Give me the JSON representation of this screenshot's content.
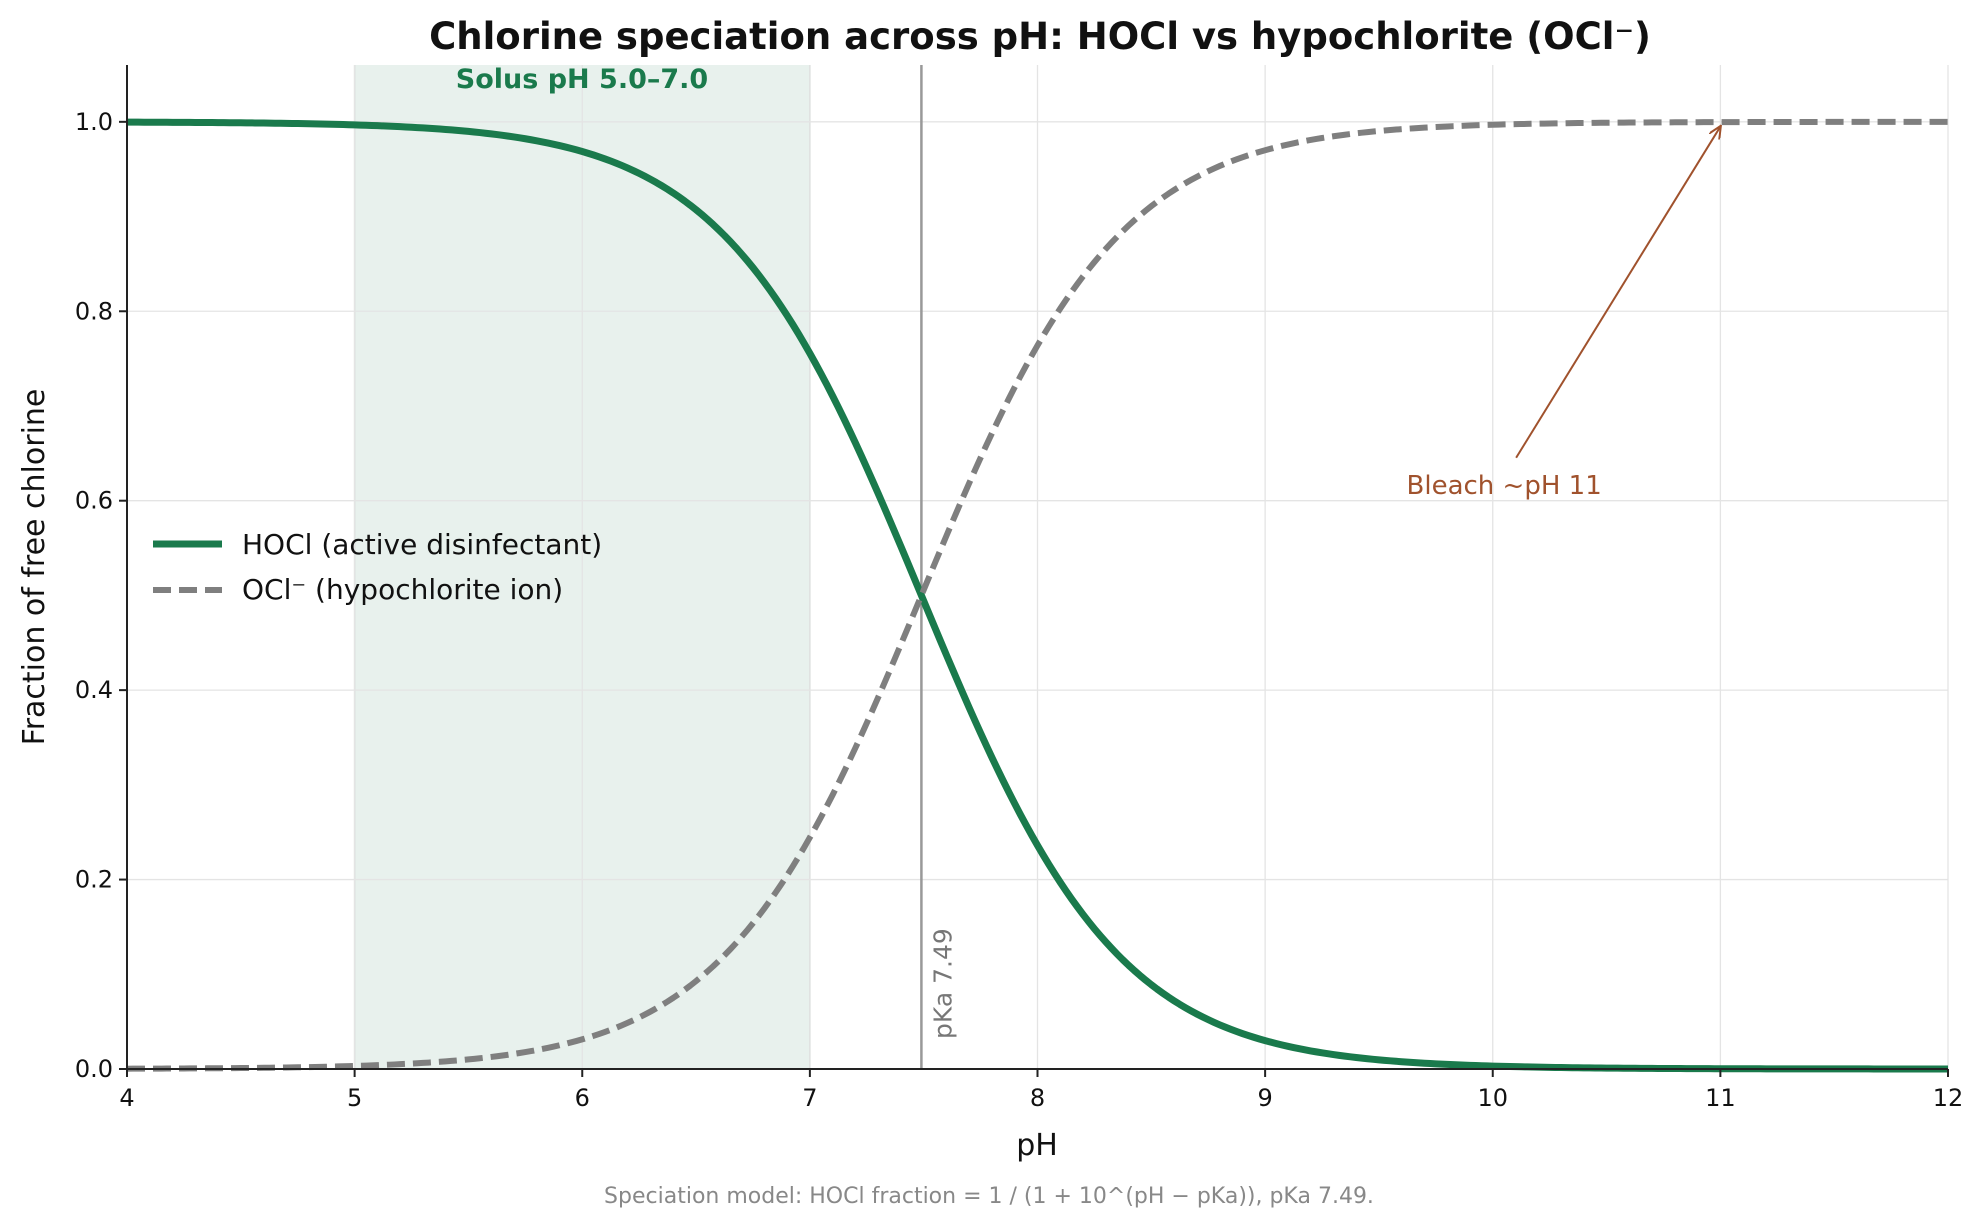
{
  "chart_data": {
    "type": "line",
    "title": "Chlorine speciation across pH: HOCl vs hypochlorite (OCl⁻)",
    "xlabel": "pH",
    "ylabel": "Fraction of free chlorine",
    "xlim": [
      4,
      12
    ],
    "ylim": [
      0,
      1.06
    ],
    "x_ticks": [
      4,
      5,
      6,
      7,
      8,
      9,
      10,
      11,
      12
    ],
    "y_ticks": [
      0.0,
      0.2,
      0.4,
      0.6,
      0.8,
      1.0
    ],
    "y_tick_labels": [
      "0.0",
      "0.2",
      "0.4",
      "0.6",
      "0.8",
      "1.0"
    ],
    "grid": true,
    "legend_position": "center-left",
    "pKa": 7.49,
    "series": [
      {
        "name": "HOCl (active disinfectant)",
        "color": "#1a7a4c",
        "style": "solid",
        "x": [
          4.0,
          4.5,
          5.0,
          5.5,
          6.0,
          6.5,
          7.0,
          7.25,
          7.49,
          7.75,
          8.0,
          8.25,
          8.5,
          9.0,
          9.5,
          10.0,
          10.5,
          11.0,
          12.0
        ],
        "values": [
          1.0,
          0.999,
          0.997,
          0.99,
          0.969,
          0.907,
          0.755,
          0.635,
          0.5,
          0.355,
          0.236,
          0.148,
          0.089,
          0.03,
          0.01,
          0.003,
          0.001,
          0.0,
          0.0
        ]
      },
      {
        "name": "OCl⁻ (hypochlorite ion)",
        "color": "#7f7f7f",
        "style": "dashed",
        "x": [
          4.0,
          4.5,
          5.0,
          5.5,
          6.0,
          6.5,
          7.0,
          7.25,
          7.49,
          7.75,
          8.0,
          8.25,
          8.5,
          9.0,
          9.5,
          10.0,
          10.5,
          11.0,
          12.0
        ],
        "values": [
          0.0,
          0.001,
          0.003,
          0.01,
          0.031,
          0.093,
          0.245,
          0.365,
          0.5,
          0.645,
          0.764,
          0.852,
          0.911,
          0.97,
          0.99,
          0.997,
          0.999,
          1.0,
          1.0
        ]
      }
    ],
    "shaded_band": {
      "x_range": [
        5.0,
        7.0
      ],
      "label": "Solus pH 5.0–7.0",
      "color": "#1a7a4c"
    },
    "vertical_line": {
      "x": 7.49,
      "label": "pKa 7.49",
      "color": "#999999"
    },
    "annotation": {
      "text": "Bleach ~pH 11",
      "text_at": [
        10.05,
        0.62
      ],
      "arrow_to": [
        11.0,
        0.995
      ],
      "color": "#a0522d"
    },
    "footnote": "Speciation model: HOCl fraction = 1 / (1 + 10^(pH − pKa)), pKa 7.49."
  }
}
